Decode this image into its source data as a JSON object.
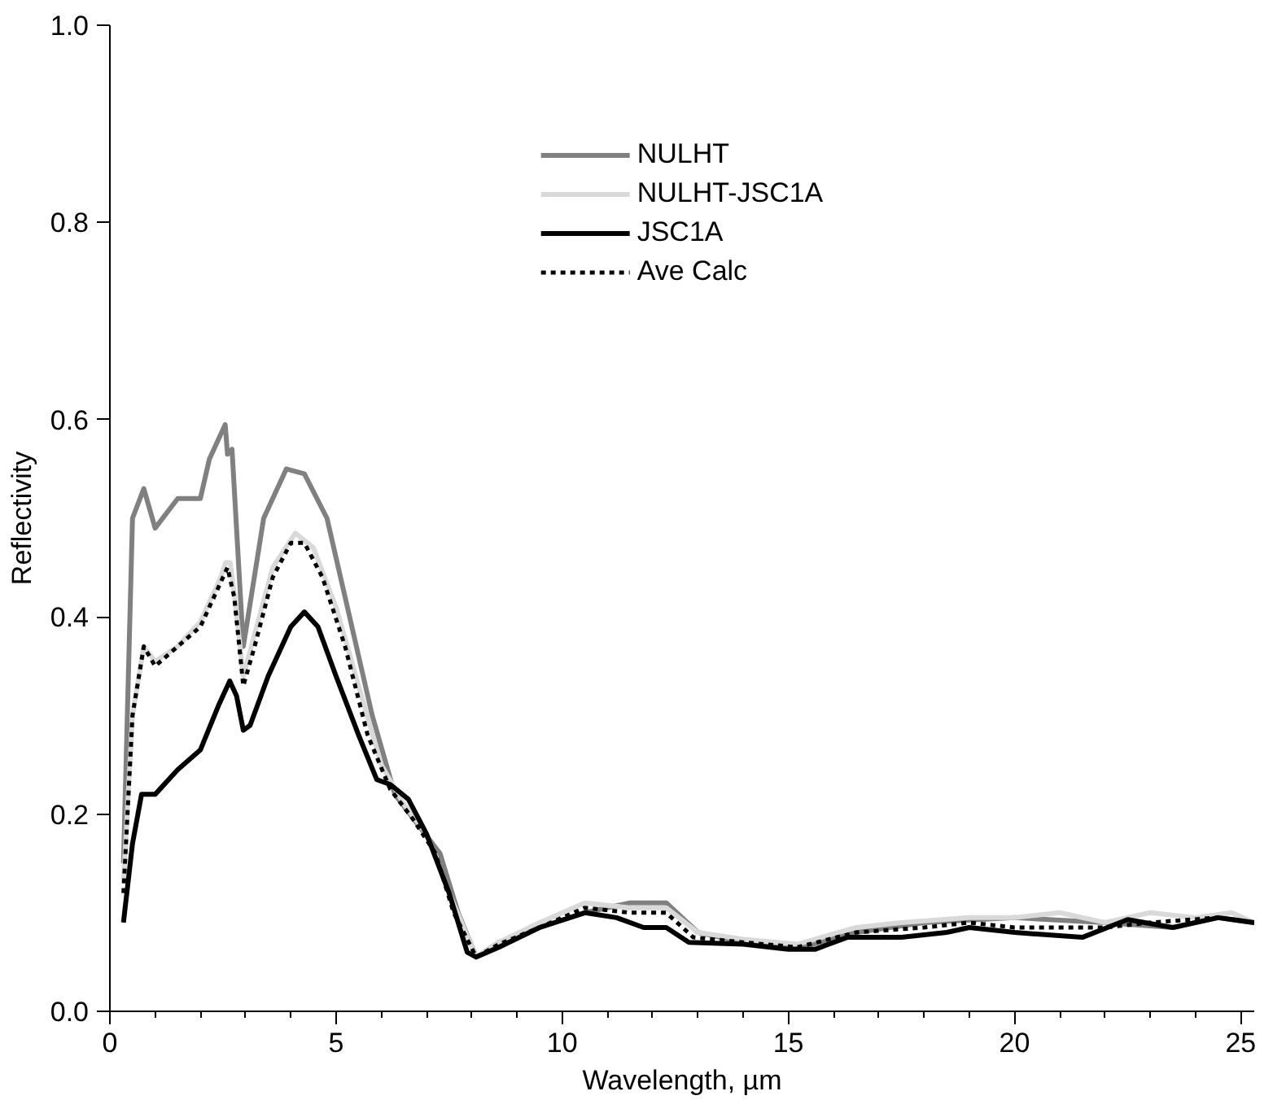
{
  "chart_data": {
    "type": "line",
    "xlabel": "Wavelength, µm",
    "ylabel": "Reflectivity",
    "xlim": [
      0,
      25.3
    ],
    "ylim": [
      0,
      1
    ],
    "xticks": [
      0,
      5,
      10,
      15,
      20,
      25
    ],
    "yticks": [
      {
        "value": 0,
        "label": "0.0"
      },
      {
        "value": 0.2,
        "label": "0.2"
      },
      {
        "value": 0.4,
        "label": "0.4"
      },
      {
        "value": 0.6,
        "label": "0.6"
      },
      {
        "value": 0.8,
        "label": "0.8"
      },
      {
        "value": 1,
        "label": "1.0"
      }
    ],
    "grid": false,
    "legend": "top",
    "series": [
      {
        "name": "NULHT",
        "color": "#808080",
        "line_style": "solid",
        "x": [
          0.3,
          0.5,
          0.75,
          1.0,
          1.5,
          2.0,
          2.2,
          2.55,
          2.6,
          2.7,
          2.95,
          3.4,
          3.9,
          4.3,
          4.8,
          5.3,
          5.8,
          6.3,
          6.8,
          7.3,
          7.7,
          8.1,
          8.6,
          9.5,
          10.5,
          11.5,
          12.3,
          13,
          14,
          15.3,
          16.5,
          18,
          20,
          22,
          23.5,
          24.5,
          25.3
        ],
        "values": [
          0.15,
          0.5,
          0.53,
          0.49,
          0.52,
          0.52,
          0.56,
          0.595,
          0.565,
          0.57,
          0.37,
          0.5,
          0.55,
          0.545,
          0.5,
          0.4,
          0.3,
          0.22,
          0.19,
          0.16,
          0.1,
          0.055,
          0.07,
          0.085,
          0.1,
          0.11,
          0.11,
          0.08,
          0.07,
          0.065,
          0.08,
          0.09,
          0.095,
          0.09,
          0.085,
          0.095,
          0.09
        ]
      },
      {
        "name": "NULHT-JSC1A",
        "color": "#d9d9d9",
        "line_style": "solid",
        "x": [
          0.3,
          0.5,
          0.75,
          1.0,
          1.5,
          2.0,
          2.45,
          2.56,
          2.66,
          2.76,
          2.95,
          3.6,
          4.1,
          4.5,
          5.0,
          5.5,
          6.0,
          6.5,
          7.0,
          7.5,
          8.1,
          8.6,
          9.5,
          10.5,
          11.5,
          12.3,
          13,
          14,
          15.2,
          16.5,
          17.5,
          19,
          20,
          21,
          22,
          23,
          24,
          24.8,
          25.3
        ],
        "values": [
          0.13,
          0.3,
          0.37,
          0.355,
          0.37,
          0.395,
          0.44,
          0.455,
          0.455,
          0.42,
          0.34,
          0.45,
          0.485,
          0.47,
          0.41,
          0.33,
          0.25,
          0.21,
          0.18,
          0.12,
          0.055,
          0.07,
          0.09,
          0.11,
          0.105,
          0.105,
          0.08,
          0.073,
          0.068,
          0.085,
          0.09,
          0.095,
          0.095,
          0.1,
          0.09,
          0.1,
          0.095,
          0.1,
          0.09
        ]
      },
      {
        "name": "JSC1A",
        "color": "#000000",
        "line_style": "solid",
        "x": [
          0.3,
          0.5,
          0.7,
          1.0,
          1.5,
          2.0,
          2.4,
          2.65,
          2.8,
          2.95,
          3.1,
          3.5,
          4.0,
          4.3,
          4.6,
          5.0,
          5.5,
          5.9,
          6.2,
          6.6,
          7.0,
          7.5,
          7.9,
          8.1,
          8.6,
          9.5,
          10.5,
          11.2,
          11.8,
          12.3,
          12.8,
          14,
          15,
          15.6,
          16.3,
          17.5,
          18.5,
          19,
          20,
          21.5,
          22.5,
          23.5,
          24.5,
          25.3
        ],
        "values": [
          0.09,
          0.17,
          0.22,
          0.22,
          0.245,
          0.265,
          0.31,
          0.335,
          0.32,
          0.285,
          0.29,
          0.34,
          0.39,
          0.405,
          0.39,
          0.34,
          0.28,
          0.235,
          0.23,
          0.215,
          0.18,
          0.12,
          0.06,
          0.055,
          0.065,
          0.085,
          0.1,
          0.095,
          0.085,
          0.085,
          0.07,
          0.068,
          0.063,
          0.063,
          0.075,
          0.075,
          0.08,
          0.085,
          0.08,
          0.075,
          0.093,
          0.085,
          0.095,
          0.09
        ]
      },
      {
        "name": "Ave Calc",
        "color": "#000000",
        "line_style": "dotted",
        "x": [
          0.3,
          0.5,
          0.75,
          1.0,
          1.5,
          2.0,
          2.3,
          2.6,
          2.75,
          2.95,
          3.2,
          3.6,
          4.0,
          4.3,
          4.7,
          5.2,
          5.7,
          6.2,
          6.7,
          7.2,
          7.6,
          8.1,
          8.6,
          9.5,
          10.5,
          11.5,
          12.3,
          12.9,
          14,
          15.2,
          16.5,
          18,
          19,
          20,
          22,
          23,
          24.5,
          25.3
        ],
        "values": [
          0.12,
          0.3,
          0.37,
          0.35,
          0.37,
          0.39,
          0.42,
          0.45,
          0.42,
          0.33,
          0.37,
          0.44,
          0.475,
          0.475,
          0.44,
          0.37,
          0.28,
          0.225,
          0.195,
          0.16,
          0.1,
          0.055,
          0.068,
          0.085,
          0.105,
          0.1,
          0.1,
          0.075,
          0.07,
          0.065,
          0.08,
          0.085,
          0.09,
          0.085,
          0.085,
          0.09,
          0.095,
          0.09
        ]
      }
    ]
  }
}
